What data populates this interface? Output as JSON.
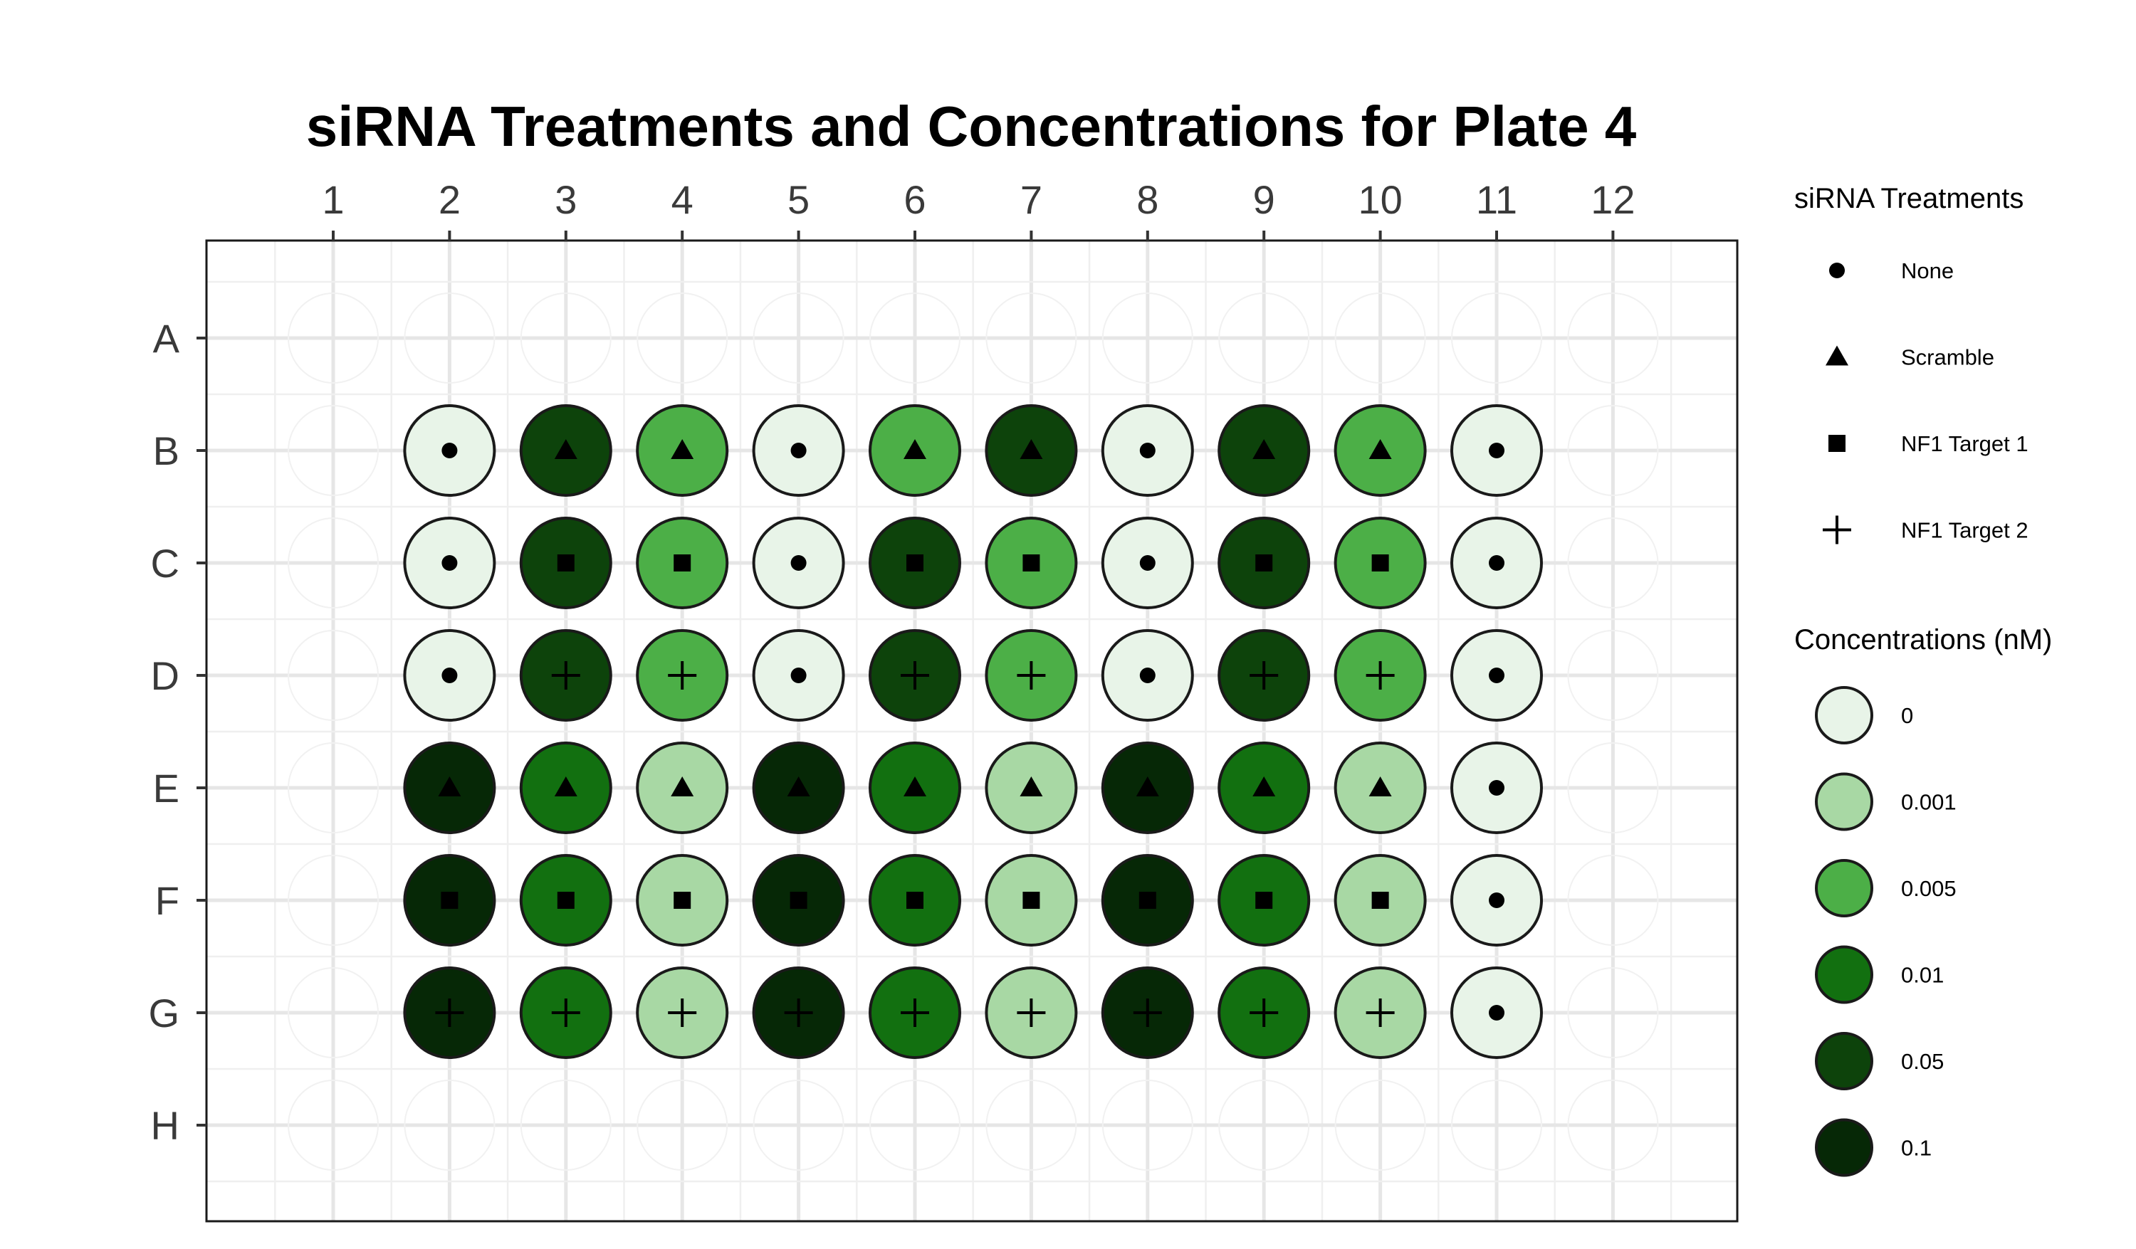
{
  "chart_data": {
    "type": "scatter",
    "title": "siRNA Treatments and Concentrations for Plate 4",
    "columns": [
      "1",
      "2",
      "3",
      "4",
      "5",
      "6",
      "7",
      "8",
      "9",
      "10",
      "11",
      "12"
    ],
    "rows": [
      "A",
      "B",
      "C",
      "D",
      "E",
      "F",
      "G",
      "H"
    ],
    "grid": true,
    "legend_position": "right",
    "treatment_legend": {
      "title": "siRNA Treatments",
      "items": [
        {
          "label": "None",
          "shape": "circle"
        },
        {
          "label": "Scramble",
          "shape": "triangle"
        },
        {
          "label": "NF1 Target 1",
          "shape": "square"
        },
        {
          "label": "NF1 Target 2",
          "shape": "plus"
        }
      ]
    },
    "concentration_legend": {
      "title": "Concentrations (nM)",
      "items": [
        {
          "label": "0",
          "color": "#e8f4e8"
        },
        {
          "label": "0.001",
          "color": "#a8d8a4"
        },
        {
          "label": "0.005",
          "color": "#4caf47"
        },
        {
          "label": "0.01",
          "color": "#127010"
        },
        {
          "label": "0.05",
          "color": "#0d430b"
        },
        {
          "label": "0.1",
          "color": "#062806"
        }
      ]
    },
    "wells": [
      {
        "row": "B",
        "col": "2",
        "treatment": "None",
        "conc": "0"
      },
      {
        "row": "B",
        "col": "3",
        "treatment": "Scramble",
        "conc": "0.05"
      },
      {
        "row": "B",
        "col": "4",
        "treatment": "Scramble",
        "conc": "0.005"
      },
      {
        "row": "B",
        "col": "5",
        "treatment": "None",
        "conc": "0"
      },
      {
        "row": "B",
        "col": "6",
        "treatment": "Scramble",
        "conc": "0.005"
      },
      {
        "row": "B",
        "col": "7",
        "treatment": "Scramble",
        "conc": "0.05"
      },
      {
        "row": "B",
        "col": "8",
        "treatment": "None",
        "conc": "0"
      },
      {
        "row": "B",
        "col": "9",
        "treatment": "Scramble",
        "conc": "0.05"
      },
      {
        "row": "B",
        "col": "10",
        "treatment": "Scramble",
        "conc": "0.005"
      },
      {
        "row": "B",
        "col": "11",
        "treatment": "None",
        "conc": "0"
      },
      {
        "row": "C",
        "col": "2",
        "treatment": "None",
        "conc": "0"
      },
      {
        "row": "C",
        "col": "3",
        "treatment": "NF1 Target 1",
        "conc": "0.05"
      },
      {
        "row": "C",
        "col": "4",
        "treatment": "NF1 Target 1",
        "conc": "0.005"
      },
      {
        "row": "C",
        "col": "5",
        "treatment": "None",
        "conc": "0"
      },
      {
        "row": "C",
        "col": "6",
        "treatment": "NF1 Target 1",
        "conc": "0.05"
      },
      {
        "row": "C",
        "col": "7",
        "treatment": "NF1 Target 1",
        "conc": "0.005"
      },
      {
        "row": "C",
        "col": "8",
        "treatment": "None",
        "conc": "0"
      },
      {
        "row": "C",
        "col": "9",
        "treatment": "NF1 Target 1",
        "conc": "0.05"
      },
      {
        "row": "C",
        "col": "10",
        "treatment": "NF1 Target 1",
        "conc": "0.005"
      },
      {
        "row": "C",
        "col": "11",
        "treatment": "None",
        "conc": "0"
      },
      {
        "row": "D",
        "col": "2",
        "treatment": "None",
        "conc": "0"
      },
      {
        "row": "D",
        "col": "3",
        "treatment": "NF1 Target 2",
        "conc": "0.05"
      },
      {
        "row": "D",
        "col": "4",
        "treatment": "NF1 Target 2",
        "conc": "0.005"
      },
      {
        "row": "D",
        "col": "5",
        "treatment": "None",
        "conc": "0"
      },
      {
        "row": "D",
        "col": "6",
        "treatment": "NF1 Target 2",
        "conc": "0.05"
      },
      {
        "row": "D",
        "col": "7",
        "treatment": "NF1 Target 2",
        "conc": "0.005"
      },
      {
        "row": "D",
        "col": "8",
        "treatment": "None",
        "conc": "0"
      },
      {
        "row": "D",
        "col": "9",
        "treatment": "NF1 Target 2",
        "conc": "0.05"
      },
      {
        "row": "D",
        "col": "10",
        "treatment": "NF1 Target 2",
        "conc": "0.005"
      },
      {
        "row": "D",
        "col": "11",
        "treatment": "None",
        "conc": "0"
      },
      {
        "row": "E",
        "col": "2",
        "treatment": "Scramble",
        "conc": "0.1"
      },
      {
        "row": "E",
        "col": "3",
        "treatment": "Scramble",
        "conc": "0.01"
      },
      {
        "row": "E",
        "col": "4",
        "treatment": "Scramble",
        "conc": "0.001"
      },
      {
        "row": "E",
        "col": "5",
        "treatment": "Scramble",
        "conc": "0.1"
      },
      {
        "row": "E",
        "col": "6",
        "treatment": "Scramble",
        "conc": "0.01"
      },
      {
        "row": "E",
        "col": "7",
        "treatment": "Scramble",
        "conc": "0.001"
      },
      {
        "row": "E",
        "col": "8",
        "treatment": "Scramble",
        "conc": "0.1"
      },
      {
        "row": "E",
        "col": "9",
        "treatment": "Scramble",
        "conc": "0.01"
      },
      {
        "row": "E",
        "col": "10",
        "treatment": "Scramble",
        "conc": "0.001"
      },
      {
        "row": "E",
        "col": "11",
        "treatment": "None",
        "conc": "0"
      },
      {
        "row": "F",
        "col": "2",
        "treatment": "NF1 Target 1",
        "conc": "0.1"
      },
      {
        "row": "F",
        "col": "3",
        "treatment": "NF1 Target 1",
        "conc": "0.01"
      },
      {
        "row": "F",
        "col": "4",
        "treatment": "NF1 Target 1",
        "conc": "0.001"
      },
      {
        "row": "F",
        "col": "5",
        "treatment": "NF1 Target 1",
        "conc": "0.1"
      },
      {
        "row": "F",
        "col": "6",
        "treatment": "NF1 Target 1",
        "conc": "0.01"
      },
      {
        "row": "F",
        "col": "7",
        "treatment": "NF1 Target 1",
        "conc": "0.001"
      },
      {
        "row": "F",
        "col": "8",
        "treatment": "NF1 Target 1",
        "conc": "0.1"
      },
      {
        "row": "F",
        "col": "9",
        "treatment": "NF1 Target 1",
        "conc": "0.01"
      },
      {
        "row": "F",
        "col": "10",
        "treatment": "NF1 Target 1",
        "conc": "0.001"
      },
      {
        "row": "F",
        "col": "11",
        "treatment": "None",
        "conc": "0"
      },
      {
        "row": "G",
        "col": "2",
        "treatment": "NF1 Target 2",
        "conc": "0.1"
      },
      {
        "row": "G",
        "col": "3",
        "treatment": "NF1 Target 2",
        "conc": "0.01"
      },
      {
        "row": "G",
        "col": "4",
        "treatment": "NF1 Target 2",
        "conc": "0.001"
      },
      {
        "row": "G",
        "col": "5",
        "treatment": "NF1 Target 2",
        "conc": "0.1"
      },
      {
        "row": "G",
        "col": "6",
        "treatment": "NF1 Target 2",
        "conc": "0.01"
      },
      {
        "row": "G",
        "col": "7",
        "treatment": "NF1 Target 2",
        "conc": "0.001"
      },
      {
        "row": "G",
        "col": "8",
        "treatment": "NF1 Target 2",
        "conc": "0.1"
      },
      {
        "row": "G",
        "col": "9",
        "treatment": "NF1 Target 2",
        "conc": "0.01"
      },
      {
        "row": "G",
        "col": "10",
        "treatment": "NF1 Target 2",
        "conc": "0.001"
      },
      {
        "row": "G",
        "col": "11",
        "treatment": "None",
        "conc": "0"
      }
    ]
  }
}
